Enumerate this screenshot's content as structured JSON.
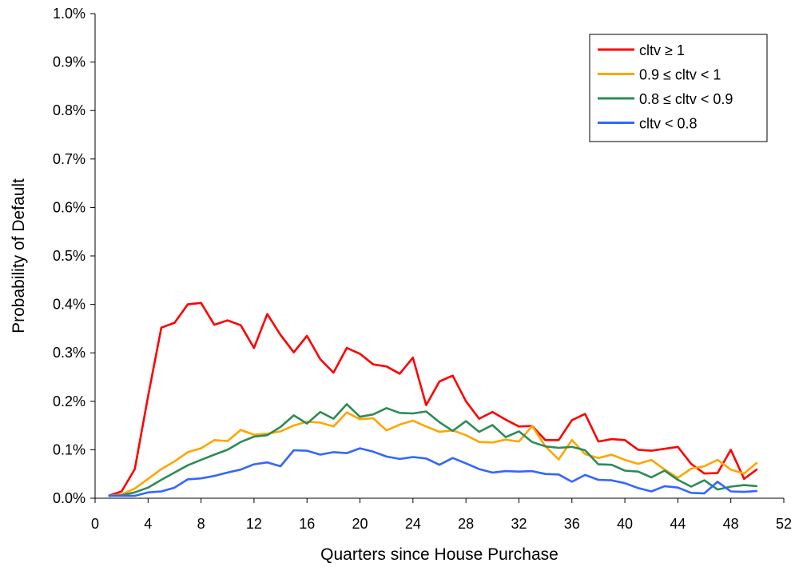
{
  "chart_data": {
    "type": "line",
    "title": "",
    "xlabel": "Quarters since House Purchase",
    "ylabel": "Probability of Default",
    "xlim": [
      0,
      52
    ],
    "ylim": [
      0,
      0.01
    ],
    "x_ticks": [
      0,
      4,
      8,
      12,
      16,
      20,
      24,
      28,
      32,
      36,
      40,
      44,
      48,
      52
    ],
    "x_tick_labels": [
      "0",
      "4",
      "8",
      "12",
      "16",
      "20",
      "24",
      "28",
      "32",
      "36",
      "40",
      "44",
      "48",
      "52"
    ],
    "y_ticks": [
      0,
      0.001,
      0.002,
      0.003,
      0.004,
      0.005,
      0.006,
      0.007,
      0.008,
      0.009,
      0.01
    ],
    "y_tick_labels": [
      "0.0%",
      "0.1%",
      "0.2%",
      "0.3%",
      "0.4%",
      "0.5%",
      "0.6%",
      "0.7%",
      "0.8%",
      "0.9%",
      "1.0%"
    ],
    "grid": false,
    "legend_position": "top-right",
    "x": [
      1,
      2,
      3,
      4,
      5,
      6,
      7,
      8,
      9,
      10,
      11,
      12,
      13,
      14,
      15,
      16,
      17,
      18,
      19,
      20,
      21,
      22,
      23,
      24,
      25,
      26,
      27,
      28,
      29,
      30,
      31,
      32,
      33,
      34,
      35,
      36,
      37,
      38,
      39,
      40,
      41,
      42,
      43,
      44,
      45,
      46,
      47,
      48,
      49,
      50
    ],
    "series": [
      {
        "name": "cltv ≥ 1",
        "color": "#ff0000",
        "values": [
          5e-05,
          0.00014,
          0.0006,
          0.0021,
          0.00352,
          0.00362,
          0.004,
          0.00403,
          0.00358,
          0.00367,
          0.00357,
          0.0031,
          0.0038,
          0.00337,
          0.00301,
          0.00335,
          0.00287,
          0.00259,
          0.0031,
          0.00298,
          0.00276,
          0.00272,
          0.00257,
          0.0029,
          0.00192,
          0.00241,
          0.00253,
          0.002,
          0.00164,
          0.00178,
          0.00162,
          0.00148,
          0.00149,
          0.0012,
          0.0012,
          0.00161,
          0.00174,
          0.00117,
          0.00122,
          0.0012,
          0.001,
          0.00098,
          0.00102,
          0.00106,
          0.00071,
          0.00051,
          0.00052,
          0.001,
          0.0004,
          0.0006
        ]
      },
      {
        "name": "0.9 ≤ cltv < 1",
        "color": "#ffa500",
        "values": [
          5e-05,
          8e-05,
          0.0002,
          0.0004,
          0.0006,
          0.00076,
          0.00095,
          0.00103,
          0.0012,
          0.00118,
          0.00141,
          0.00131,
          0.00133,
          0.00138,
          0.0015,
          0.00158,
          0.00156,
          0.00148,
          0.00177,
          0.00163,
          0.00165,
          0.0014,
          0.00152,
          0.0016,
          0.00148,
          0.00137,
          0.0014,
          0.0013,
          0.00116,
          0.00115,
          0.00121,
          0.00117,
          0.00149,
          0.00107,
          0.0008,
          0.0012,
          0.00091,
          0.00083,
          0.0009,
          0.00079,
          0.00071,
          0.00079,
          0.00059,
          0.00042,
          0.00061,
          0.00066,
          0.00079,
          0.00059,
          0.00051,
          0.00074
        ]
      },
      {
        "name": "0.8 ≤ cltv < 0.9",
        "color": "#2e8b57",
        "values": [
          5e-05,
          6e-05,
          0.00012,
          0.00022,
          0.00038,
          0.00053,
          0.00068,
          0.00079,
          0.0009,
          0.001,
          0.00116,
          0.00127,
          0.0013,
          0.00147,
          0.00171,
          0.00154,
          0.00178,
          0.00164,
          0.00194,
          0.00168,
          0.00173,
          0.00186,
          0.00176,
          0.00175,
          0.00179,
          0.00157,
          0.00139,
          0.00159,
          0.00137,
          0.00151,
          0.00126,
          0.00138,
          0.00116,
          0.00107,
          0.00104,
          0.00106,
          0.00099,
          0.0007,
          0.00069,
          0.00057,
          0.00055,
          0.00043,
          0.00057,
          0.00038,
          0.00024,
          0.00037,
          0.00018,
          0.00024,
          0.00027,
          0.00025
        ]
      },
      {
        "name": "cltv < 0.8",
        "color": "#3366ff",
        "values": [
          5e-05,
          5e-05,
          5e-05,
          0.00012,
          0.00014,
          0.00022,
          0.00039,
          0.00041,
          0.00046,
          0.00053,
          0.00059,
          0.0007,
          0.00074,
          0.00066,
          0.00099,
          0.00098,
          0.0009,
          0.00095,
          0.00093,
          0.00103,
          0.00096,
          0.00086,
          0.00081,
          0.00085,
          0.00082,
          0.00069,
          0.00083,
          0.00072,
          0.0006,
          0.00053,
          0.00056,
          0.00055,
          0.00056,
          0.0005,
          0.00049,
          0.00034,
          0.00048,
          0.00038,
          0.00037,
          0.00031,
          0.00021,
          0.00014,
          0.00025,
          0.00022,
          0.00011,
          0.0001,
          0.00034,
          0.00014,
          0.00013,
          0.00015
        ]
      }
    ]
  }
}
